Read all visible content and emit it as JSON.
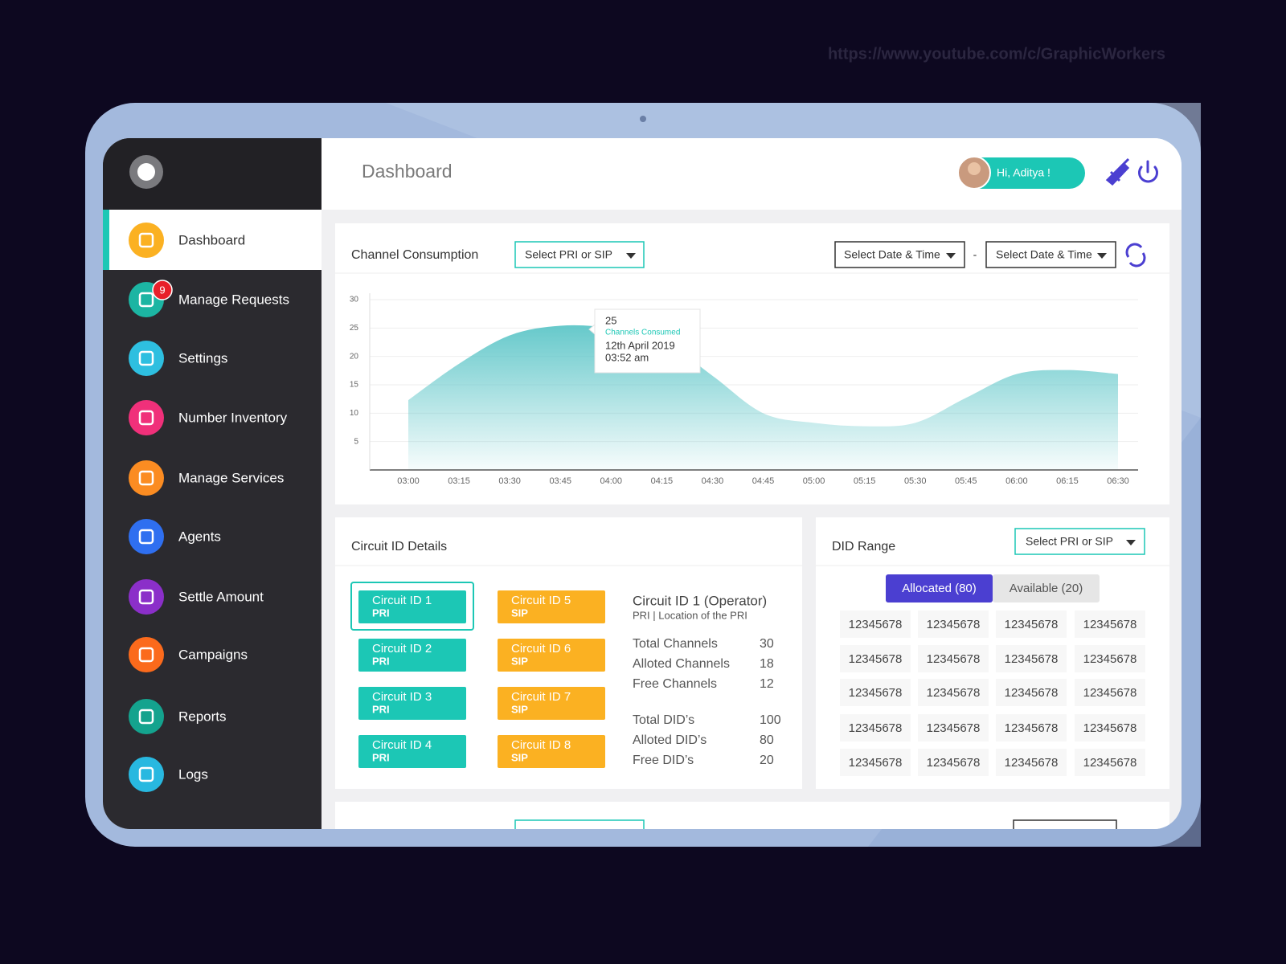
{
  "watermark": "https://www.youtube.com/c/GraphicWorkers",
  "header": {
    "title": "Dashboard",
    "greeting": "Hi, Aditya !"
  },
  "sidebar": {
    "items": [
      {
        "label": "Dashboard",
        "color": "#fbb122"
      },
      {
        "label": "Manage Requests",
        "color": "#1cb5a3",
        "badge": 9
      },
      {
        "label": "Settings",
        "color": "#2ebfe0"
      },
      {
        "label": "Number Inventory",
        "color": "#f0307a"
      },
      {
        "label": "Manage Services",
        "color": "#fb8c22"
      },
      {
        "label": "Agents",
        "color": "#2f6ff0"
      },
      {
        "label": "Settle Amount",
        "color": "#8b2fc9"
      },
      {
        "label": "Campaigns",
        "color": "#fb6a1c"
      },
      {
        "label": "Reports",
        "color": "#14a38e"
      },
      {
        "label": "Logs",
        "color": "#28b8e0"
      }
    ]
  },
  "channel_consumption": {
    "title": "Channel Consumption",
    "select": "Select PRI or SIP",
    "date_from": "Select Date & Time",
    "separator": "-",
    "date_to": "Select Date & Time"
  },
  "chart_data": {
    "type": "area",
    "categories": [
      "03:00",
      "03:15",
      "03:30",
      "03:45",
      "04:00",
      "04:15",
      "04:30",
      "04:45",
      "05:00",
      "05:15",
      "05:30",
      "05:45",
      "06:00",
      "06:15",
      "06:30"
    ],
    "values": [
      12.3,
      18.7,
      23.7,
      25.4,
      25,
      23,
      16.6,
      10,
      8.3,
      7.7,
      8.3,
      12.7,
      16.9,
      17.6,
      16.9
    ],
    "color": "#5ec6c8",
    "ylim": [
      0,
      30
    ],
    "yticks": [
      5,
      10,
      15,
      20,
      25,
      30
    ],
    "grid": true,
    "tooltip": {
      "value": 25,
      "label": "Channels Consumed",
      "date": "12th April 2019",
      "time": "03:52 am"
    }
  },
  "circuit_details": {
    "title": "Circuit ID Details",
    "circuits": [
      {
        "name": "Circuit ID 1",
        "type": "PRI"
      },
      {
        "name": "Circuit ID 2",
        "type": "PRI"
      },
      {
        "name": "Circuit ID 3",
        "type": "PRI"
      },
      {
        "name": "Circuit ID 4",
        "type": "PRI"
      },
      {
        "name": "Circuit ID 5",
        "type": "SIP"
      },
      {
        "name": "Circuit ID 6",
        "type": "SIP"
      },
      {
        "name": "Circuit ID 7",
        "type": "SIP"
      },
      {
        "name": "Circuit ID 8",
        "type": "SIP"
      }
    ],
    "selected_title": "Circuit ID 1 (Operator)",
    "selected_subtitle": "PRI | Location of the PRI",
    "channel_stats": [
      {
        "label": "Total Channels",
        "value": 30
      },
      {
        "label": "Alloted Channels",
        "value": 18
      },
      {
        "label": "Free Channels",
        "value": 12
      }
    ],
    "did_stats": [
      {
        "label": "Total DID’s",
        "value": 100
      },
      {
        "label": "Alloted DID’s",
        "value": 80
      },
      {
        "label": "Free DID’s",
        "value": 20
      }
    ]
  },
  "did_range": {
    "title": "DID Range",
    "select": "Select PRI or SIP",
    "tabs": [
      "Allocated (80)",
      "Available (20)"
    ],
    "numbers": [
      12345678,
      12345678,
      12345678,
      12345678,
      12345678,
      12345678,
      12345678,
      12345678,
      12345678,
      12345678,
      12345678,
      12345678,
      12345678,
      12345678,
      12345678,
      12345678,
      12345678,
      12345678,
      12345678,
      12345678
    ]
  }
}
